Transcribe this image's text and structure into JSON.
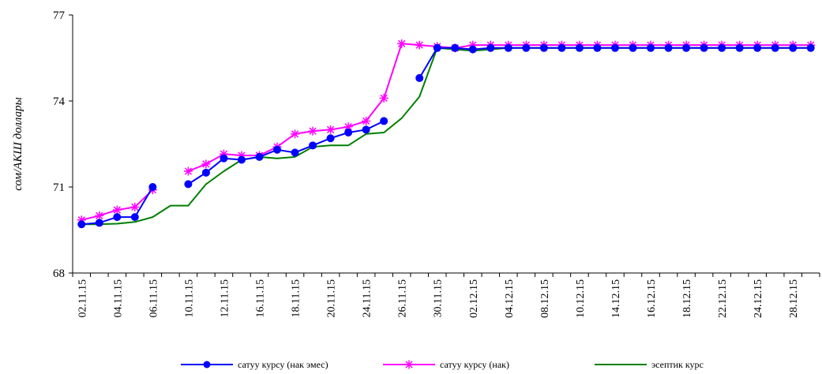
{
  "chart_data": {
    "type": "line",
    "title": "",
    "xlabel": "",
    "ylabel": "сом/АКШ доллары",
    "ylim": [
      68,
      77
    ],
    "yticks": [
      68,
      71,
      74,
      77
    ],
    "grid": false,
    "legend_position": "bottom",
    "x_labels": [
      "02.11.15",
      "04.11.15",
      "06.11.15",
      "10.11.15",
      "12.11.15",
      "16.11.15",
      "18.11.15",
      "20.11.15",
      "24.11.15",
      "26.11.15",
      "30.11.15",
      "02.12.15",
      "04.12.15",
      "08.12.15",
      "10.12.15",
      "14.12.15",
      "16.12.15",
      "18.12.15",
      "22.12.15",
      "24.12.15",
      "28.12.15",
      "30.12.15"
    ],
    "series": [
      {
        "name": "сатуу курсу (нак эмес)",
        "color": "#0000FF",
        "marker": "circle",
        "values": [
          69.7,
          69.75,
          69.95,
          69.95,
          71.0,
          null,
          71.1,
          71.5,
          72.0,
          71.95,
          72.05,
          72.3,
          72.2,
          72.45,
          72.7,
          72.9,
          73.0,
          73.3,
          null,
          74.8,
          75.85,
          75.85,
          75.8,
          75.85,
          75.85,
          75.85,
          75.85,
          75.85,
          75.85,
          75.85,
          75.85,
          75.85,
          75.85,
          75.85,
          75.85,
          75.85,
          75.85,
          75.85,
          75.85,
          75.85,
          75.85,
          75.85
        ]
      },
      {
        "name": "сатуу курсу  (нак)",
        "color": "#FF00FF",
        "marker": "star",
        "values": [
          69.85,
          70.0,
          70.2,
          70.3,
          70.9,
          null,
          71.55,
          71.8,
          72.15,
          72.1,
          72.1,
          72.4,
          72.85,
          72.95,
          73.0,
          73.1,
          73.3,
          74.1,
          76.0,
          75.95,
          75.9,
          75.85,
          75.95,
          75.95,
          75.95,
          75.95,
          75.95,
          75.95,
          75.95,
          75.95,
          75.95,
          75.95,
          75.95,
          75.95,
          75.95,
          75.95,
          75.95,
          75.95,
          75.95,
          75.95,
          75.95,
          75.95
        ]
      },
      {
        "name": "эсептик курс",
        "color": "#008000",
        "marker": "none",
        "values": [
          69.7,
          69.7,
          69.72,
          69.78,
          69.95,
          70.35,
          70.35,
          71.1,
          71.55,
          71.95,
          72.05,
          72.0,
          72.05,
          72.4,
          72.45,
          72.45,
          72.85,
          72.9,
          73.4,
          74.15,
          75.85,
          75.8,
          75.75,
          75.8,
          75.85,
          75.85,
          75.85,
          75.85,
          75.85,
          75.85,
          75.85,
          75.85,
          75.85,
          75.85,
          75.85,
          75.85,
          75.85,
          75.85,
          75.85,
          75.85,
          75.85,
          75.85
        ]
      }
    ]
  }
}
